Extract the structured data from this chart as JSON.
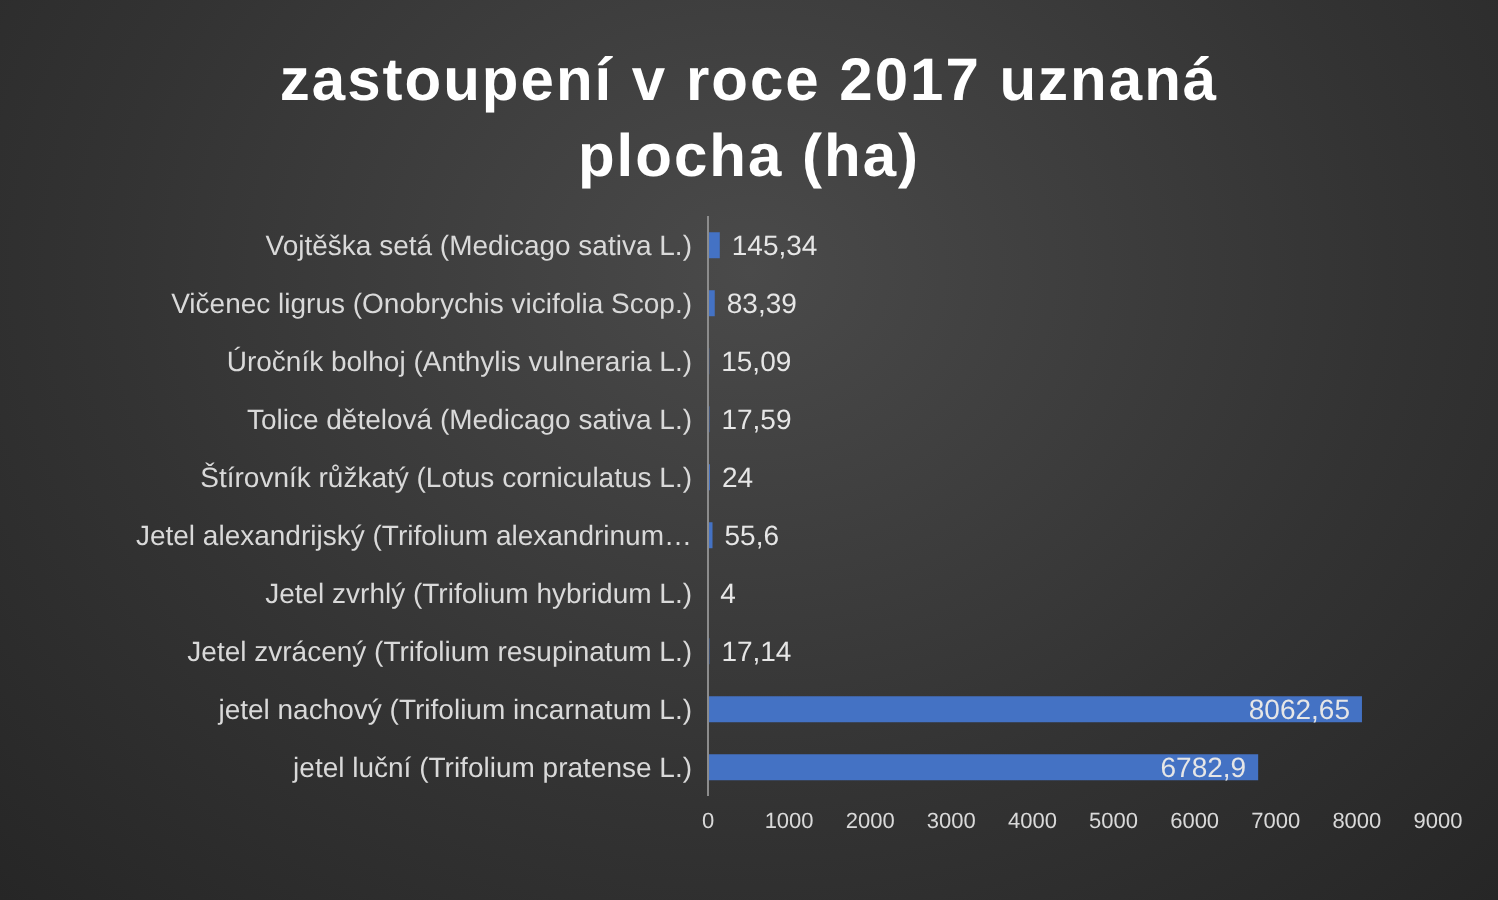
{
  "chart_data": {
    "type": "bar",
    "orientation": "horizontal",
    "title": "zastoupení v roce 2017 uznaná plocha (ha)",
    "categories": [
      "Vojtěška setá (Medicago sativa L.)",
      "Vičenec ligrus (Onobrychis vicifolia Scop.)",
      "Úročník bolhoj (Anthylis vulneraria L.)",
      "Tolice dětelová (Medicago sativa L.)",
      "Štírovník růžkatý (Lotus corniculatus L.)",
      "Jetel alexandrijský (Trifolium alexandrinum…",
      "Jetel zvrhlý (Trifolium hybridum L.)",
      "Jetel zvrácený (Trifolium resupinatum L.)",
      "jetel nachový (Trifolium incarnatum L.)",
      "jetel luční (Trifolium pratense L.)"
    ],
    "values": [
      145.34,
      83.39,
      15.09,
      17.59,
      24,
      55.6,
      4,
      17.14,
      8062.65,
      6782.9
    ],
    "value_labels": [
      "145,34",
      "83,39",
      "15,09",
      "17,59",
      "24",
      "55,6",
      "4",
      "17,14",
      "8062,65",
      "6782,9"
    ],
    "color": "#4472c4",
    "xlim": [
      0,
      9000
    ],
    "xticks": [
      0,
      1000,
      2000,
      3000,
      4000,
      5000,
      6000,
      7000,
      8000,
      9000
    ],
    "grid": false,
    "legend": false
  }
}
